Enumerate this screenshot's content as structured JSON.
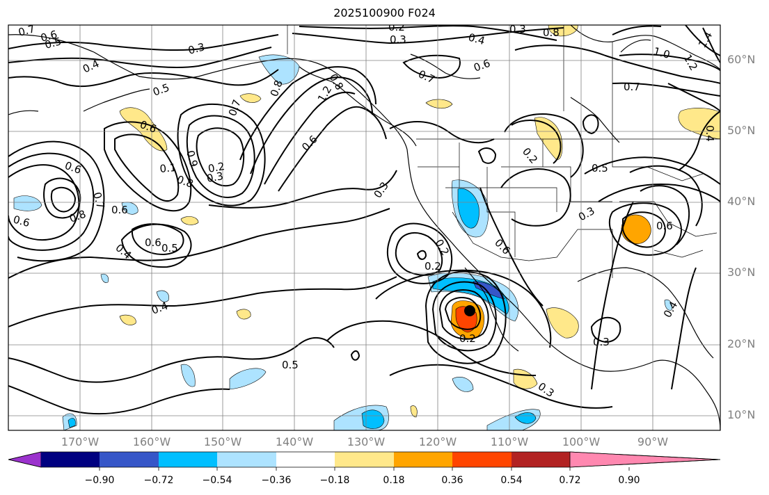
{
  "title": "2025100900 F024",
  "lat_labels": [
    "60°N",
    "50°N",
    "40°N",
    "30°N",
    "20°N",
    "10°N"
  ],
  "lon_labels": [
    "170°W",
    "160°W",
    "150°W",
    "140°W",
    "130°W",
    "120°W",
    "110°W",
    "100°W",
    "90°W"
  ],
  "colorbar": {
    "ticks": [
      "−0.90",
      "−0.72",
      "−0.54",
      "−0.36",
      "−0.18",
      "0.18",
      "0.36",
      "0.54",
      "0.72",
      "0.90"
    ],
    "colors": [
      "#9b32cd",
      "#000080",
      "#3656c8",
      "#00bfff",
      "#ade3ff",
      "#ffffff",
      "#ffe88a",
      "#ffa500",
      "#ff4500",
      "#b22222",
      "#ff88b0"
    ]
  },
  "contour_labels": [
    "0.7",
    "0.6",
    "0.5",
    "0.4",
    "0.3",
    "0.2",
    "0.3",
    "0.4",
    "0.3",
    "0.7",
    "0.6",
    "0.8",
    "1.0",
    "1.2",
    "1.4",
    "0.6",
    "0.5",
    "0.8",
    "0.7",
    "0.6",
    "0.9",
    "0.8",
    "0.1",
    "0.2",
    "0.3",
    "1.2",
    "0.8",
    "0.6",
    "0.6",
    "0.8",
    "0.7",
    "0.6",
    "0.4",
    "0.5",
    "0.6",
    "0.4",
    "0.5",
    "0.3",
    "0.2",
    "0.6",
    "0.2",
    "0.2",
    "0.5",
    "0.6",
    "0.3",
    "0.4",
    "0.3",
    "0.2",
    "0.7",
    "0.4",
    "0.3"
  ]
}
